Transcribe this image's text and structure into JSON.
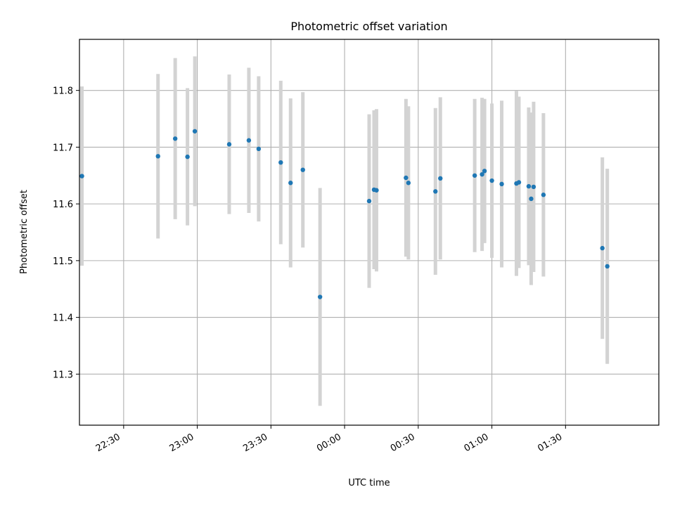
{
  "chart_data": {
    "type": "scatter",
    "title": "Photometric offset variation",
    "xlabel": "UTC time",
    "ylabel": "Photometric offset",
    "x_axis_type": "time",
    "xlim": [
      "22:12",
      "02:08"
    ],
    "ylim": [
      11.21,
      11.89
    ],
    "x_ticks": [
      "22:30",
      "23:00",
      "23:30",
      "00:00",
      "00:30",
      "01:00",
      "01:30"
    ],
    "y_ticks": [
      "11.3",
      "11.4",
      "11.5",
      "11.6",
      "11.7",
      "11.8"
    ],
    "grid": true,
    "legend": "none",
    "colors": {
      "point": "#1f77b4",
      "errorbar": "#d3d3d3",
      "grid": "#b0b0b0"
    },
    "points": [
      {
        "x": "22:13",
        "y": 11.649,
        "err": 0.158
      },
      {
        "x": "22:44",
        "y": 11.684,
        "err": 0.145
      },
      {
        "x": "22:51",
        "y": 11.715,
        "err": 0.142
      },
      {
        "x": "22:56",
        "y": 11.683,
        "err": 0.121
      },
      {
        "x": "22:59",
        "y": 11.728,
        "err": 0.132
      },
      {
        "x": "23:13",
        "y": 11.705,
        "err": 0.123
      },
      {
        "x": "23:21",
        "y": 11.712,
        "err": 0.128
      },
      {
        "x": "23:25",
        "y": 11.697,
        "err": 0.128
      },
      {
        "x": "23:34",
        "y": 11.673,
        "err": 0.144
      },
      {
        "x": "23:38",
        "y": 11.637,
        "err": 0.149
      },
      {
        "x": "23:43",
        "y": 11.66,
        "err": 0.137
      },
      {
        "x": "23:50",
        "y": 11.436,
        "err": 0.192
      },
      {
        "x": "00:10",
        "y": 11.605,
        "err": 0.153
      },
      {
        "x": "00:12",
        "y": 11.625,
        "err": 0.14
      },
      {
        "x": "00:13",
        "y": 11.624,
        "err": 0.143
      },
      {
        "x": "00:25",
        "y": 11.646,
        "err": 0.139
      },
      {
        "x": "00:26",
        "y": 11.637,
        "err": 0.135
      },
      {
        "x": "00:37",
        "y": 11.622,
        "err": 0.147
      },
      {
        "x": "00:39",
        "y": 11.645,
        "err": 0.143
      },
      {
        "x": "00:53",
        "y": 11.65,
        "err": 0.135
      },
      {
        "x": "00:56",
        "y": 11.652,
        "err": 0.135
      },
      {
        "x": "00:57",
        "y": 11.658,
        "err": 0.127
      },
      {
        "x": "01:00",
        "y": 11.641,
        "err": 0.136
      },
      {
        "x": "01:04",
        "y": 11.635,
        "err": 0.147
      },
      {
        "x": "01:10",
        "y": 11.636,
        "err": 0.163
      },
      {
        "x": "01:11",
        "y": 11.638,
        "err": 0.151
      },
      {
        "x": "01:15",
        "y": 11.631,
        "err": 0.139
      },
      {
        "x": "01:16",
        "y": 11.609,
        "err": 0.152
      },
      {
        "x": "01:17",
        "y": 11.63,
        "err": 0.15
      },
      {
        "x": "01:21",
        "y": 11.616,
        "err": 0.144
      },
      {
        "x": "01:45",
        "y": 11.522,
        "err": 0.16
      },
      {
        "x": "01:47",
        "y": 11.49,
        "err": 0.172
      }
    ]
  }
}
